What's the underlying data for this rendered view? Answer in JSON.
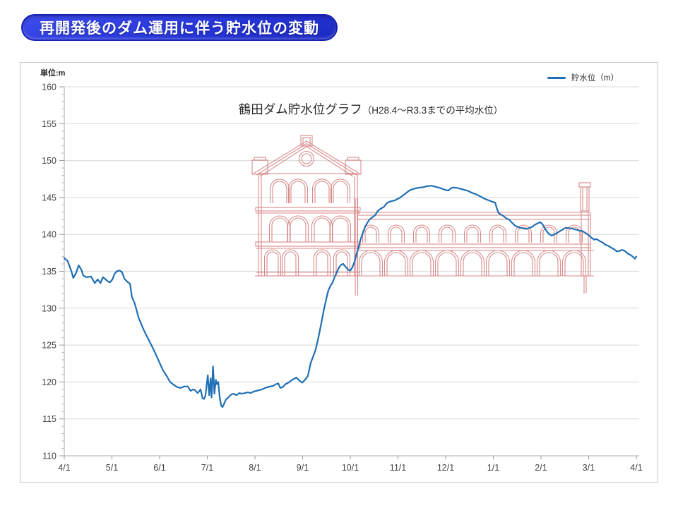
{
  "banner": {
    "title": "再開発後のダム運用に伴う貯水位の変動"
  },
  "chart": {
    "unit_label": "単位:m",
    "title_main": "鶴田ダム貯水位グラフ",
    "title_sub": "（H28.4～R3.3までの平均水位）",
    "legend": {
      "label": "貯水位（m）"
    }
  },
  "colors": {
    "line_blue": "#1F6FB5",
    "banner_blue": "#2636D8",
    "art_red": "#D88A8A"
  },
  "chart_data": {
    "type": "line",
    "title": "鶴田ダム貯水位グラフ（H28.4～R3.3までの平均水位）",
    "ylabel": "単位:m",
    "unit": "m",
    "ylim": [
      110,
      160
    ],
    "y_tick_step": 5,
    "y_minor_tick_step": 1,
    "grid": "horizontal",
    "legend_position": "top-right",
    "x_unit": "months_from_4/1",
    "x_range_months": [
      0,
      12
    ],
    "x_tick_labels": [
      "4/1",
      "5/1",
      "6/1",
      "7/1",
      "8/1",
      "9/1",
      "10/1",
      "11/1",
      "12/1",
      "1/1",
      "2/1",
      "3/1",
      "4/1"
    ],
    "overlay_art": "red line drawing of brick power-plant ruins (pediment tower with round window + long arched-window wing with chimney) spanning roughly 8/1–3/1 above the 134 m level",
    "series": [
      {
        "name": "貯水位（m）",
        "color": "#1F6FB5",
        "points": [
          [
            0.0,
            136.8
          ],
          [
            0.07,
            136.4
          ],
          [
            0.15,
            135.0
          ],
          [
            0.19,
            134.1
          ],
          [
            0.25,
            134.8
          ],
          [
            0.3,
            135.8
          ],
          [
            0.36,
            135.2
          ],
          [
            0.4,
            134.4
          ],
          [
            0.47,
            134.2
          ],
          [
            0.56,
            134.3
          ],
          [
            0.64,
            133.4
          ],
          [
            0.7,
            133.9
          ],
          [
            0.76,
            133.4
          ],
          [
            0.81,
            134.2
          ],
          [
            0.87,
            133.9
          ],
          [
            0.92,
            133.6
          ],
          [
            0.96,
            133.5
          ],
          [
            1.01,
            133.9
          ],
          [
            1.05,
            134.6
          ],
          [
            1.1,
            135.0
          ],
          [
            1.16,
            135.1
          ],
          [
            1.21,
            134.9
          ],
          [
            1.26,
            134.0
          ],
          [
            1.32,
            133.6
          ],
          [
            1.38,
            133.3
          ],
          [
            1.42,
            131.5
          ],
          [
            1.48,
            130.6
          ],
          [
            1.56,
            128.7
          ],
          [
            1.63,
            127.6
          ],
          [
            1.7,
            126.6
          ],
          [
            1.78,
            125.6
          ],
          [
            1.85,
            124.7
          ],
          [
            1.93,
            123.6
          ],
          [
            2.0,
            122.6
          ],
          [
            2.07,
            121.6
          ],
          [
            2.15,
            120.8
          ],
          [
            2.22,
            120.0
          ],
          [
            2.3,
            119.6
          ],
          [
            2.37,
            119.3
          ],
          [
            2.44,
            119.2
          ],
          [
            2.52,
            119.4
          ],
          [
            2.59,
            119.4
          ],
          [
            2.65,
            118.8
          ],
          [
            2.7,
            119.0
          ],
          [
            2.74,
            118.9
          ],
          [
            2.8,
            118.5
          ],
          [
            2.86,
            119.0
          ],
          [
            2.9,
            117.8
          ],
          [
            2.93,
            117.7
          ],
          [
            2.96,
            118.1
          ],
          [
            3.01,
            120.9
          ],
          [
            3.04,
            118.2
          ],
          [
            3.07,
            120.5
          ],
          [
            3.09,
            117.9
          ],
          [
            3.12,
            122.1
          ],
          [
            3.15,
            118.4
          ],
          [
            3.18,
            120.3
          ],
          [
            3.2,
            119.7
          ],
          [
            3.23,
            120.0
          ],
          [
            3.26,
            118.0
          ],
          [
            3.29,
            116.8
          ],
          [
            3.32,
            116.6
          ],
          [
            3.35,
            117.0
          ],
          [
            3.39,
            117.6
          ],
          [
            3.44,
            117.9
          ],
          [
            3.5,
            118.3
          ],
          [
            3.56,
            118.4
          ],
          [
            3.61,
            118.2
          ],
          [
            3.67,
            118.5
          ],
          [
            3.73,
            118.4
          ],
          [
            3.79,
            118.5
          ],
          [
            3.85,
            118.6
          ],
          [
            3.91,
            118.5
          ],
          [
            3.97,
            118.7
          ],
          [
            4.03,
            118.8
          ],
          [
            4.09,
            118.9
          ],
          [
            4.15,
            119.0
          ],
          [
            4.21,
            119.2
          ],
          [
            4.27,
            119.3
          ],
          [
            4.33,
            119.4
          ],
          [
            4.39,
            119.5
          ],
          [
            4.44,
            119.7
          ],
          [
            4.49,
            119.8
          ],
          [
            4.53,
            119.2
          ],
          [
            4.58,
            119.3
          ],
          [
            4.64,
            119.7
          ],
          [
            4.7,
            119.9
          ],
          [
            4.76,
            120.2
          ],
          [
            4.81,
            120.4
          ],
          [
            4.87,
            120.6
          ],
          [
            4.93,
            120.2
          ],
          [
            4.99,
            119.9
          ],
          [
            5.05,
            120.3
          ],
          [
            5.11,
            120.8
          ],
          [
            5.17,
            122.6
          ],
          [
            5.23,
            123.6
          ],
          [
            5.27,
            124.3
          ],
          [
            5.33,
            126.0
          ],
          [
            5.38,
            127.6
          ],
          [
            5.44,
            129.6
          ],
          [
            5.5,
            131.4
          ],
          [
            5.54,
            132.4
          ],
          [
            5.59,
            133.1
          ],
          [
            5.63,
            133.5
          ],
          [
            5.67,
            134.2
          ],
          [
            5.72,
            134.9
          ],
          [
            5.76,
            135.5
          ],
          [
            5.81,
            135.9
          ],
          [
            5.85,
            136.0
          ],
          [
            5.9,
            135.6
          ],
          [
            5.96,
            135.2
          ],
          [
            6.0,
            135.1
          ],
          [
            6.04,
            135.5
          ],
          [
            6.09,
            136.3
          ],
          [
            6.13,
            137.3
          ],
          [
            6.18,
            138.4
          ],
          [
            6.22,
            139.4
          ],
          [
            6.27,
            140.3
          ],
          [
            6.31,
            141.0
          ],
          [
            6.36,
            141.6
          ],
          [
            6.4,
            142.0
          ],
          [
            6.46,
            142.3
          ],
          [
            6.52,
            142.6
          ],
          [
            6.58,
            143.2
          ],
          [
            6.64,
            143.5
          ],
          [
            6.7,
            143.7
          ],
          [
            6.76,
            144.2
          ],
          [
            6.81,
            144.4
          ],
          [
            6.87,
            144.5
          ],
          [
            6.93,
            144.6
          ],
          [
            6.99,
            144.8
          ],
          [
            7.05,
            145.0
          ],
          [
            7.11,
            145.3
          ],
          [
            7.17,
            145.6
          ],
          [
            7.23,
            145.9
          ],
          [
            7.29,
            146.1
          ],
          [
            7.35,
            146.2
          ],
          [
            7.41,
            146.3
          ],
          [
            7.47,
            146.35
          ],
          [
            7.53,
            146.4
          ],
          [
            7.59,
            146.5
          ],
          [
            7.64,
            146.55
          ],
          [
            7.7,
            146.6
          ],
          [
            7.76,
            146.5
          ],
          [
            7.82,
            146.4
          ],
          [
            7.88,
            146.3
          ],
          [
            7.94,
            146.15
          ],
          [
            8.0,
            146.0
          ],
          [
            8.06,
            145.95
          ],
          [
            8.12,
            146.3
          ],
          [
            8.17,
            146.35
          ],
          [
            8.23,
            146.3
          ],
          [
            8.3,
            146.2
          ],
          [
            8.36,
            146.1
          ],
          [
            8.41,
            146.0
          ],
          [
            8.47,
            145.9
          ],
          [
            8.53,
            145.7
          ],
          [
            8.59,
            145.55
          ],
          [
            8.65,
            145.4
          ],
          [
            8.71,
            145.2
          ],
          [
            8.77,
            145.0
          ],
          [
            8.83,
            144.8
          ],
          [
            8.89,
            144.65
          ],
          [
            8.95,
            144.5
          ],
          [
            8.99,
            144.4
          ],
          [
            9.04,
            144.3
          ],
          [
            9.07,
            143.6
          ],
          [
            9.11,
            142.9
          ],
          [
            9.16,
            142.7
          ],
          [
            9.21,
            142.5
          ],
          [
            9.27,
            142.2
          ],
          [
            9.33,
            142.0
          ],
          [
            9.39,
            141.6
          ],
          [
            9.45,
            141.2
          ],
          [
            9.51,
            141.0
          ],
          [
            9.57,
            140.9
          ],
          [
            9.63,
            140.8
          ],
          [
            9.69,
            140.75
          ],
          [
            9.75,
            140.85
          ],
          [
            9.81,
            141.0
          ],
          [
            9.87,
            141.3
          ],
          [
            9.93,
            141.5
          ],
          [
            9.99,
            141.65
          ],
          [
            10.04,
            141.3
          ],
          [
            10.1,
            140.6
          ],
          [
            10.16,
            140.1
          ],
          [
            10.22,
            139.85
          ],
          [
            10.28,
            140.0
          ],
          [
            10.34,
            140.2
          ],
          [
            10.4,
            140.45
          ],
          [
            10.46,
            140.7
          ],
          [
            10.52,
            140.9
          ],
          [
            10.58,
            140.85
          ],
          [
            10.64,
            140.8
          ],
          [
            10.7,
            140.7
          ],
          [
            10.76,
            140.6
          ],
          [
            10.81,
            140.5
          ],
          [
            10.87,
            140.45
          ],
          [
            10.93,
            140.2
          ],
          [
            10.99,
            139.95
          ],
          [
            11.05,
            139.6
          ],
          [
            11.11,
            139.3
          ],
          [
            11.17,
            139.35
          ],
          [
            11.23,
            139.1
          ],
          [
            11.29,
            138.9
          ],
          [
            11.35,
            138.6
          ],
          [
            11.41,
            138.45
          ],
          [
            11.47,
            138.2
          ],
          [
            11.53,
            138.0
          ],
          [
            11.59,
            137.7
          ],
          [
            11.64,
            137.75
          ],
          [
            11.7,
            137.9
          ],
          [
            11.76,
            137.75
          ],
          [
            11.82,
            137.4
          ],
          [
            11.88,
            137.2
          ],
          [
            11.94,
            136.9
          ],
          [
            11.97,
            136.7
          ],
          [
            12.0,
            137.0
          ]
        ]
      }
    ]
  }
}
